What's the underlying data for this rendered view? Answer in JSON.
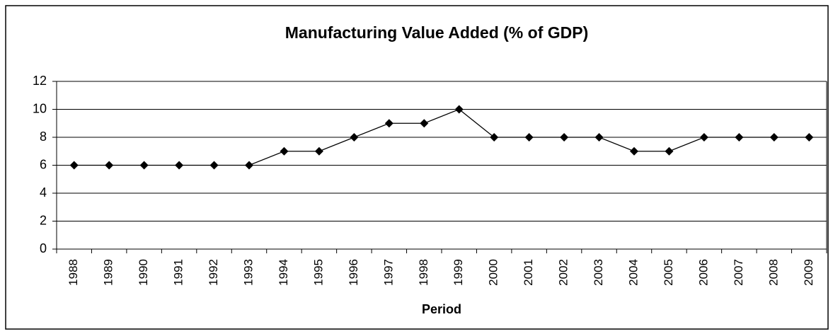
{
  "chart_data": {
    "type": "line",
    "title": "Manufacturing Value Added (% of GDP)",
    "x_label": "Period",
    "categories": [
      "1988",
      "1989",
      "1990",
      "1991",
      "1992",
      "1993",
      "1994",
      "1995",
      "1996",
      "1997",
      "1998",
      "1999",
      "2000",
      "2001",
      "2002",
      "2003",
      "2004",
      "2005",
      "2006",
      "2007",
      "2008",
      "2009"
    ],
    "series": [
      {
        "name": "Manufacturing Value Added",
        "color": "#000000",
        "values": [
          6,
          6,
          6,
          6,
          6,
          6,
          7,
          7,
          8,
          9,
          9,
          10,
          8,
          8,
          8,
          8,
          7,
          7,
          8,
          8,
          8,
          8
        ]
      }
    ],
    "ylim": [
      0,
      12
    ],
    "yticks": [
      0,
      2,
      4,
      6,
      8,
      10,
      12
    ],
    "grid": true
  }
}
